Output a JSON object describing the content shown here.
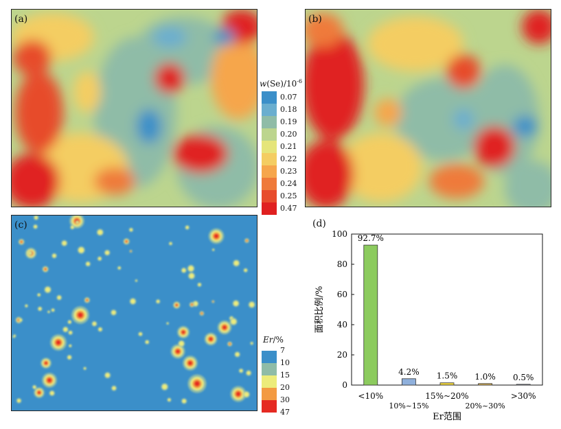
{
  "panels": {
    "a": "(a)",
    "b": "(b)",
    "c": "(c)",
    "d": "(d)"
  },
  "legend_top": {
    "title_var": "w",
    "title_rest": "(Se)/10",
    "title_sup": "-6",
    "ticks": [
      "0.07",
      "0.18",
      "0.19",
      "0.20",
      "0.21",
      "0.22",
      "0.23",
      "0.24",
      "0.25",
      "0.47"
    ],
    "colors": [
      "#3b8fc9",
      "#6aaecf",
      "#8fbca7",
      "#bcd58e",
      "#e5e57a",
      "#f4cd62",
      "#f6a64c",
      "#ef7a3a",
      "#e74c2c",
      "#e02020"
    ]
  },
  "legend_bottom": {
    "title_var": "Er",
    "title_rest": "/%",
    "ticks": [
      "7",
      "10",
      "15",
      "20",
      "30",
      "47"
    ],
    "colors": [
      "#3b8fc9",
      "#8fbca7",
      "#ecec7a",
      "#f39a42",
      "#e52a22"
    ]
  },
  "chart_data": {
    "type": "bar",
    "categories": [
      "<10%",
      "10%~15%",
      "15%~20%",
      "20%~30%",
      ">30%"
    ],
    "values": [
      92.7,
      4.2,
      1.5,
      1.0,
      0.5
    ],
    "data_labels": [
      "92.7%",
      "4.2%",
      "1.5%",
      "1.0%",
      "0.5%"
    ],
    "bar_colors": [
      "#8ccb5e",
      "#8fb0dc",
      "#ecd340",
      "#d6b15a",
      "#8e9bb2"
    ],
    "ylim": [
      0,
      100
    ],
    "yticks": [
      0,
      20,
      40,
      60,
      80,
      100
    ],
    "xlabel": "Er范围",
    "ylabel": "面积比例/%",
    "grid": false
  }
}
